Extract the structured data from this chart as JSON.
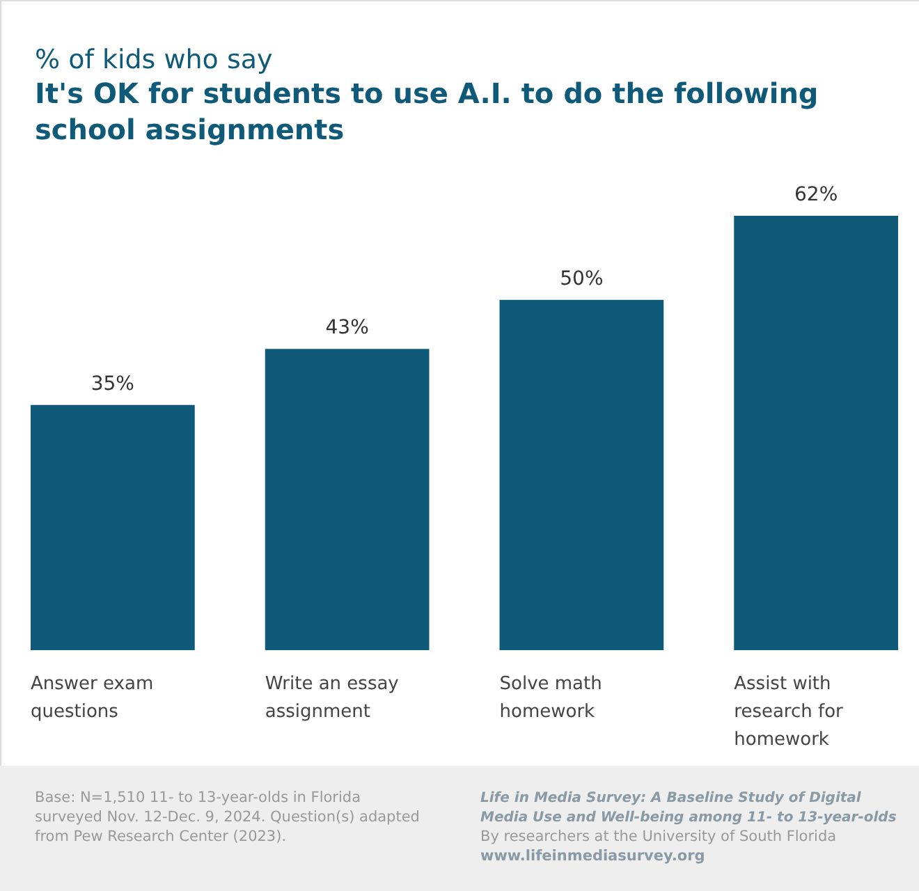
{
  "chart_data": {
    "type": "bar",
    "subtitle": "% of kids who say",
    "title": "It's OK for students to use A.I. to do the following school assignments",
    "categories": [
      "Answer exam questions",
      "Write an essay assignment",
      "Solve math homework",
      "Assist with research for homework"
    ],
    "values": [
      35,
      43,
      50,
      62
    ],
    "value_labels": [
      "35%",
      "43%",
      "50%",
      "62%"
    ],
    "color": "#0e5a78",
    "annotations": [
      "Base: N=1,510 11- to 13-year-olds in Florida surveyed Nov. 12-Dec. 9, 2024. Question(s) adapted from Pew Research Center (2023).",
      "Life in Media Survey: A Baseline Study of Digital Media Use and Well-being among 11- to 13-year-olds",
      "By researchers at the University of South Florida",
      "www.lifeinmediasurvey.org"
    ]
  }
}
